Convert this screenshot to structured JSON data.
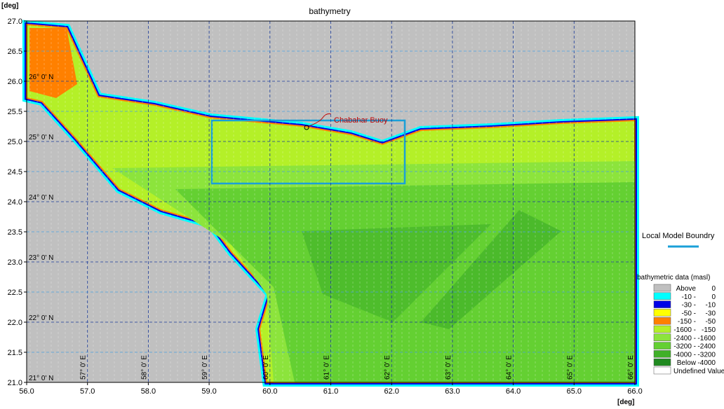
{
  "map": {
    "title": "bathymetry",
    "y_unit": "[deg]",
    "x_unit": "[deg]",
    "xlim": [
      56,
      66
    ],
    "ylim": [
      21,
      27
    ],
    "xticks": [
      {
        "value": 56,
        "label": "56.0"
      },
      {
        "value": 57,
        "label": "57.0"
      },
      {
        "value": 58,
        "label": "58.0"
      },
      {
        "value": 59,
        "label": "59.0"
      },
      {
        "value": 60,
        "label": "60.0"
      },
      {
        "value": 61,
        "label": "61.0"
      },
      {
        "value": 62,
        "label": "62.0"
      },
      {
        "value": 63,
        "label": "63.0"
      },
      {
        "value": 64,
        "label": "64.0"
      },
      {
        "value": 65,
        "label": "65.0"
      },
      {
        "value": 66,
        "label": "66.0"
      }
    ],
    "yticks": [
      {
        "value": 21,
        "label": "21.0"
      },
      21.5,
      {
        "value": 22,
        "label": "22.0"
      },
      22.5,
      {
        "value": 23,
        "label": "23.0"
      },
      23.5,
      {
        "value": 24,
        "label": "24.0"
      },
      24.5,
      {
        "value": 25,
        "label": "25.0"
      },
      25.5,
      {
        "value": 26,
        "label": "26.0"
      },
      26.5,
      {
        "value": 27,
        "label": "27.0"
      }
    ],
    "lat_labels": [
      {
        "value": 21,
        "label": "21° 0' N"
      },
      {
        "value": 22,
        "label": "22° 0' N"
      },
      {
        "value": 23,
        "label": "23° 0' N"
      },
      {
        "value": 24,
        "label": "24° 0' N"
      },
      {
        "value": 25,
        "label": "25° 0' N"
      },
      {
        "value": 26,
        "label": "26° 0' N"
      }
    ],
    "lon_labels": [
      {
        "value": 57,
        "label": "57° 0' E"
      },
      {
        "value": 58,
        "label": "58° 0' E"
      },
      {
        "value": 59,
        "label": "59° 0' E"
      },
      {
        "value": 60,
        "label": "60° 0' E"
      },
      {
        "value": 61,
        "label": "61° 0' E"
      },
      {
        "value": 62,
        "label": "62° 0' E"
      },
      {
        "value": 63,
        "label": "63° 0' E"
      },
      {
        "value": 64,
        "label": "64° 0' E"
      },
      {
        "value": 65,
        "label": "65° 0' E"
      },
      {
        "value": 66,
        "label": "66° 0' E"
      }
    ],
    "annotation": "Chabahar Buoy",
    "boundary_legend": "Local Model Boundry",
    "legend_title": "bathymetric data (masl)",
    "legend": [
      {
        "from": "Above",
        "to": "0",
        "color": "#c0c0c0"
      },
      {
        "from": "-10 -",
        "to": "0",
        "color": "#00ffff"
      },
      {
        "from": "-30 -",
        "to": "-10",
        "color": "#0000e6"
      },
      {
        "from": "-50 -",
        "to": "-30",
        "color": "#ffff00"
      },
      {
        "from": "-150 -",
        "to": "-50",
        "color": "#ff8000"
      },
      {
        "from": "-1600 -",
        "to": "-150",
        "color": "#b4f028"
      },
      {
        "from": "-2400 -",
        "to": "-1600",
        "color": "#8ce43c"
      },
      {
        "from": "-3200 -",
        "to": "-2400",
        "color": "#64d032"
      },
      {
        "from": "-4000 -",
        "to": "-3200",
        "color": "#40b028"
      },
      {
        "from": "Below",
        "to": "-4000",
        "color": "#208a20"
      },
      {
        "from": "Undefined Value",
        "color": "#ffffff"
      }
    ]
  }
}
